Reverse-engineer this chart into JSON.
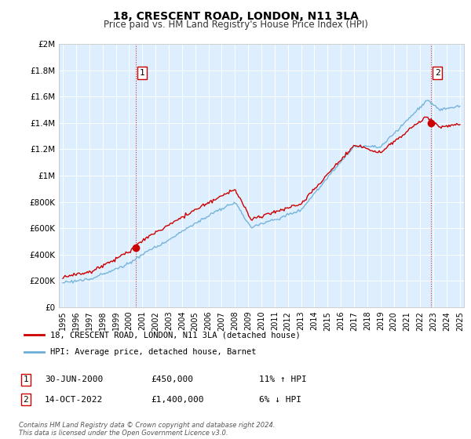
{
  "title": "18, CRESCENT ROAD, LONDON, N11 3LA",
  "subtitle": "Price paid vs. HM Land Registry's House Price Index (HPI)",
  "legend_line1": "18, CRESCENT ROAD, LONDON, N11 3LA (detached house)",
  "legend_line2": "HPI: Average price, detached house, Barnet",
  "annotation1_date": "30-JUN-2000",
  "annotation1_price": "£450,000",
  "annotation1_hpi": "11% ↑ HPI",
  "annotation2_date": "14-OCT-2022",
  "annotation2_price": "£1,400,000",
  "annotation2_hpi": "6% ↓ HPI",
  "footer": "Contains HM Land Registry data © Crown copyright and database right 2024.\nThis data is licensed under the Open Government Licence v3.0.",
  "sale1_year": 2000.5,
  "sale1_value": 450000,
  "sale2_year": 2022.79,
  "sale2_value": 1400000,
  "hpi_color": "#6baed6",
  "price_color": "#cc0000",
  "bg_color": "#ddeeff",
  "ylim_min": 0,
  "ylim_max": 2000000,
  "xlim_min": 1994.7,
  "xlim_max": 2025.3,
  "yticks": [
    0,
    200000,
    400000,
    600000,
    800000,
    1000000,
    1200000,
    1400000,
    1600000,
    1800000,
    2000000
  ],
  "ytick_labels": [
    "£0",
    "£200K",
    "£400K",
    "£600K",
    "£800K",
    "£1M",
    "£1.2M",
    "£1.4M",
    "£1.6M",
    "£1.8M",
    "£2M"
  ],
  "xtick_years": [
    1995,
    1996,
    1997,
    1998,
    1999,
    2000,
    2001,
    2002,
    2003,
    2004,
    2005,
    2006,
    2007,
    2008,
    2009,
    2010,
    2011,
    2012,
    2013,
    2014,
    2015,
    2016,
    2017,
    2018,
    2019,
    2020,
    2021,
    2022,
    2023,
    2024,
    2025
  ]
}
